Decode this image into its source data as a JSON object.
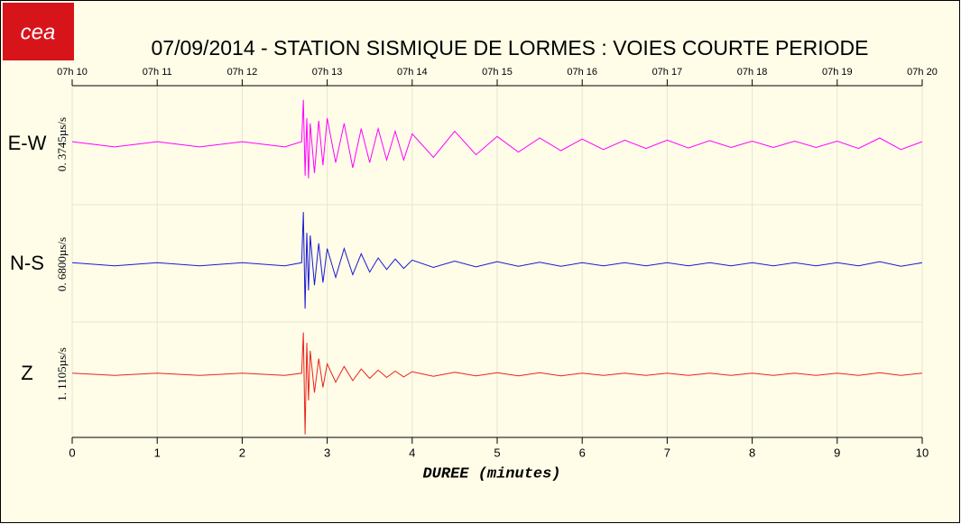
{
  "chart_data": {
    "type": "seismogram",
    "logo": "cea",
    "title": "07/09/2014  -  STATION SISMIQUE DE LORMES : VOIES COURTE PERIODE",
    "xlabel": "DUREE (minutes)",
    "xlim": [
      0,
      10
    ],
    "xticks": [
      0,
      1,
      2,
      3,
      4,
      5,
      6,
      7,
      8,
      9,
      10
    ],
    "x2ticks": [
      {
        "value": 0,
        "label": "07h 10"
      },
      {
        "value": 1,
        "label": "07h 11"
      },
      {
        "value": 2,
        "label": "07h 12"
      },
      {
        "value": 3,
        "label": "07h 13"
      },
      {
        "value": 4,
        "label": "07h 14"
      },
      {
        "value": 5,
        "label": "07h 15"
      },
      {
        "value": 6,
        "label": "07h 16"
      },
      {
        "value": 7,
        "label": "07h 17"
      },
      {
        "value": 8,
        "label": "07h 18"
      },
      {
        "value": 9,
        "label": "07h 19"
      },
      {
        "value": 10,
        "label": "07h 20"
      }
    ],
    "grid": true,
    "x": [
      0,
      0.5,
      1,
      1.5,
      2,
      2.5,
      2.7,
      2.72,
      2.74,
      2.76,
      2.78,
      2.8,
      2.85,
      2.9,
      2.95,
      3,
      3.1,
      3.2,
      3.3,
      3.4,
      3.5,
      3.6,
      3.7,
      3.8,
      3.9,
      4,
      4.25,
      4.5,
      4.75,
      5,
      5.25,
      5.5,
      5.75,
      6,
      6.25,
      6.5,
      6.75,
      7,
      7.25,
      7.5,
      7.75,
      8,
      8.25,
      8.5,
      8.75,
      9,
      9.25,
      9.5,
      9.75,
      10
    ],
    "series": [
      {
        "name": "E-W",
        "scale_label": "0. 3745µs/s",
        "color": "#ff00ff",
        "values": [
          0.05,
          -0.05,
          0.05,
          -0.05,
          0.05,
          -0.05,
          0.05,
          0.85,
          -0.6,
          0.5,
          -0.65,
          0.4,
          -0.55,
          0.45,
          -0.4,
          0.5,
          -0.35,
          0.4,
          -0.45,
          0.3,
          -0.35,
          0.3,
          -0.3,
          0.25,
          -0.3,
          0.2,
          -0.25,
          0.25,
          -0.2,
          0.15,
          -0.15,
          0.12,
          -0.12,
          0.1,
          -0.1,
          0.08,
          -0.08,
          0.08,
          -0.07,
          0.07,
          -0.06,
          0.06,
          -0.06,
          0.06,
          -0.06,
          0.06,
          -0.08,
          0.12,
          -0.1,
          0.05
        ]
      },
      {
        "name": "N-S",
        "scale_label": "0. 6800µs/s",
        "color": "#1a1ad0",
        "values": [
          0.03,
          -0.03,
          0.03,
          -0.03,
          0.03,
          -0.03,
          0.03,
          1,
          -0.85,
          0.6,
          -0.5,
          0.55,
          -0.4,
          0.4,
          -0.35,
          0.3,
          -0.25,
          0.3,
          -0.2,
          0.2,
          -0.15,
          0.12,
          -0.1,
          0.1,
          -0.08,
          0.08,
          -0.06,
          0.06,
          -0.05,
          0.05,
          -0.04,
          0.04,
          -0.04,
          0.03,
          -0.03,
          0.03,
          -0.03,
          0.03,
          -0.03,
          0.03,
          -0.03,
          0.03,
          -0.03,
          0.03,
          -0.03,
          0.03,
          -0.03,
          0.05,
          -0.04,
          0.03
        ]
      },
      {
        "name": "Z",
        "scale_label": "1. 1105µs/s",
        "color": "#e8231e",
        "values": [
          0.02,
          -0.02,
          0.02,
          -0.02,
          0.02,
          -0.02,
          0.02,
          0.8,
          -1.15,
          0.6,
          -0.5,
          0.45,
          -0.35,
          0.3,
          -0.25,
          0.2,
          -0.15,
          0.15,
          -0.12,
          0.1,
          -0.08,
          0.08,
          -0.06,
          0.06,
          -0.05,
          0.05,
          -0.04,
          0.04,
          -0.03,
          0.03,
          -0.03,
          0.03,
          -0.03,
          0.02,
          -0.02,
          0.02,
          -0.02,
          0.02,
          -0.02,
          0.02,
          -0.02,
          0.02,
          -0.02,
          0.02,
          -0.02,
          0.02,
          -0.02,
          0.03,
          -0.02,
          0.02
        ]
      }
    ]
  }
}
